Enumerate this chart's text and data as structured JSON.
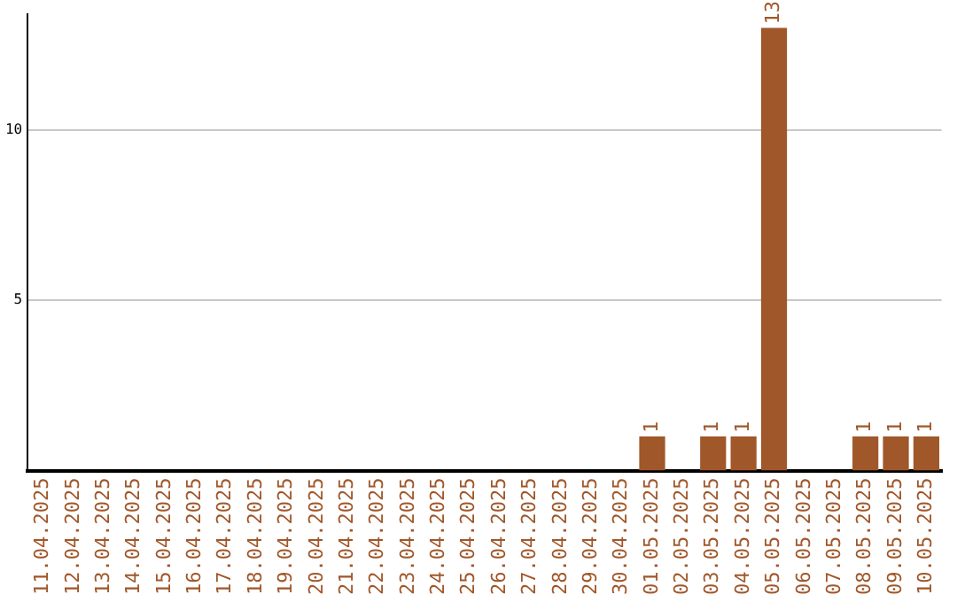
{
  "chart_data": {
    "type": "bar",
    "categories": [
      "11.04.2025",
      "12.04.2025",
      "13.04.2025",
      "14.04.2025",
      "15.04.2025",
      "16.04.2025",
      "17.04.2025",
      "18.04.2025",
      "19.04.2025",
      "20.04.2025",
      "21.04.2025",
      "22.04.2025",
      "23.04.2025",
      "24.04.2025",
      "25.04.2025",
      "26.04.2025",
      "27.04.2025",
      "28.04.2025",
      "29.04.2025",
      "30.04.2025",
      "01.05.2025",
      "02.05.2025",
      "03.05.2025",
      "04.05.2025",
      "05.05.2025",
      "06.05.2025",
      "07.05.2025",
      "08.05.2025",
      "09.05.2025",
      "10.05.2025"
    ],
    "values": [
      0,
      0,
      0,
      0,
      0,
      0,
      0,
      0,
      0,
      0,
      0,
      0,
      0,
      0,
      0,
      0,
      0,
      0,
      0,
      0,
      1,
      0,
      1,
      1,
      13,
      0,
      0,
      1,
      1,
      1
    ],
    "value_labels": [
      null,
      null,
      null,
      null,
      null,
      null,
      null,
      null,
      null,
      null,
      null,
      null,
      null,
      null,
      null,
      null,
      null,
      null,
      null,
      null,
      "1",
      null,
      "1",
      "1",
      "13",
      null,
      null,
      "1",
      "1",
      "1"
    ],
    "color": "#a0572a",
    "ylim": [
      0,
      13.4
    ],
    "yticks": [
      5,
      10
    ],
    "grid": "y",
    "legend": false
  }
}
